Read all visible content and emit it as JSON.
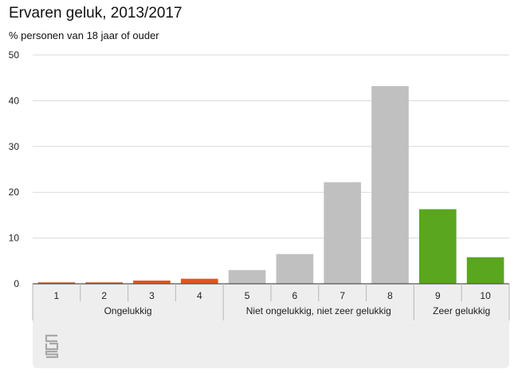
{
  "chart_data": {
    "type": "bar",
    "title": "Ervaren geluk, 2013/2017",
    "subtitle": "% personen van 18 jaar of ouder",
    "categories": [
      "1",
      "2",
      "3",
      "4",
      "5",
      "6",
      "7",
      "8",
      "9",
      "10"
    ],
    "values": [
      0.3,
      0.3,
      0.7,
      1.1,
      3.0,
      6.5,
      22.2,
      43.2,
      16.3,
      5.8
    ],
    "category_groups": [
      {
        "label": "Ongelukkig",
        "members": [
          "1",
          "2",
          "3",
          "4"
        ]
      },
      {
        "label": "Niet ongelukkig, niet zeer gelukkig",
        "members": [
          "5",
          "6",
          "7",
          "8"
        ]
      },
      {
        "label": "Zeer gelukkig",
        "members": [
          "9",
          "10"
        ]
      }
    ],
    "bar_colors": [
      "#c8501e",
      "#c8501e",
      "#e0571b",
      "#e0571b",
      "#c0c0c0",
      "#c0c0c0",
      "#c0c0c0",
      "#c0c0c0",
      "#5aa61f",
      "#5aa61f"
    ],
    "yticks": [
      0,
      10,
      20,
      30,
      40,
      50
    ],
    "ylim": [
      0,
      50
    ],
    "grid": true,
    "legend": "none"
  },
  "logo": {
    "icon": "cbs-logo-icon"
  }
}
